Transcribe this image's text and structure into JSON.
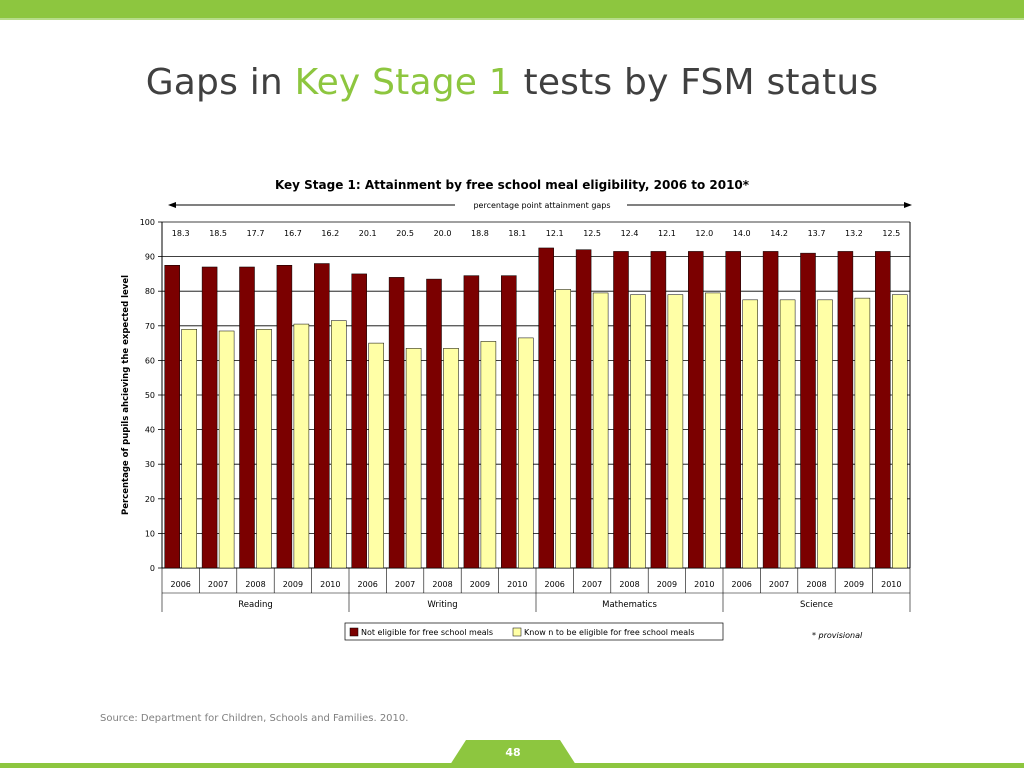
{
  "slide": {
    "title_before": "Gaps in ",
    "title_highlight": "Key Stage 1",
    "title_after": " tests by FSM status",
    "source": "Source: Department for Children, Schools and Families. 2010.",
    "page_number": "48"
  },
  "colors": {
    "accent_green": "#8dc63f",
    "not_eligible": "#7b0000",
    "eligible": "#ffffa6",
    "title_text": "#404040"
  },
  "chart_data": {
    "type": "bar",
    "title": "Key Stage 1: Attainment by free school meal eligibility, 2006 to 2010*",
    "gap_banner": "percentage point attainment gaps",
    "ylabel": "Percentage of pupils ahcieving the expected level",
    "xlabel": "",
    "ylim": [
      0,
      100
    ],
    "yticks": [
      0,
      10,
      20,
      30,
      40,
      50,
      60,
      70,
      80,
      90,
      100
    ],
    "grid": true,
    "legend_position": "bottom",
    "note": "* provisional",
    "groups": [
      "Reading",
      "Writing",
      "Mathematics",
      "Science"
    ],
    "categories": [
      "2006",
      "2007",
      "2008",
      "2009",
      "2010",
      "2006",
      "2007",
      "2008",
      "2009",
      "2010",
      "2006",
      "2007",
      "2008",
      "2009",
      "2010",
      "2006",
      "2007",
      "2008",
      "2009",
      "2010"
    ],
    "gaps": [
      "18.3",
      "18.5",
      "17.7",
      "16.7",
      "16.2",
      "20.1",
      "20.5",
      "20.0",
      "18.8",
      "18.1",
      "12.1",
      "12.5",
      "12.4",
      "12.1",
      "12.0",
      "14.0",
      "14.2",
      "13.7",
      "13.2",
      "12.5"
    ],
    "series": [
      {
        "name": "Not eligible for free school meals",
        "values": [
          87.5,
          87,
          87,
          87.5,
          88,
          85,
          84,
          83.5,
          84.5,
          84.5,
          92.5,
          92,
          91.5,
          91.5,
          91.5,
          91.5,
          91.5,
          91,
          91.5,
          91.5
        ]
      },
      {
        "name": "Know n to be eligible for free school meals",
        "values": [
          69,
          68.5,
          69,
          70.5,
          71.5,
          65,
          63.5,
          63.5,
          65.5,
          66.5,
          80.5,
          79.5,
          79,
          79,
          79.5,
          77.5,
          77.5,
          77.5,
          78,
          79
        ]
      }
    ]
  }
}
